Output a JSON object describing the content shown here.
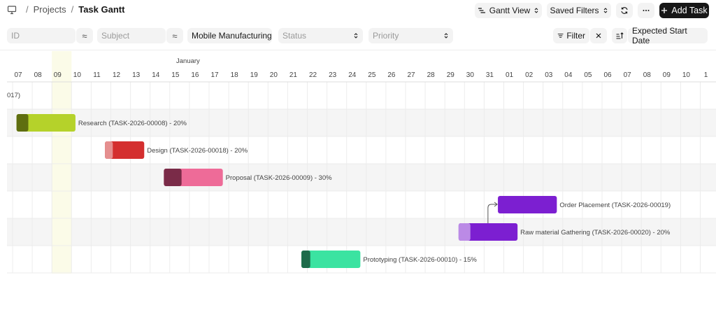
{
  "breadcrumb": {
    "projects": "Projects",
    "current": "Task Gantt"
  },
  "toolbar": {
    "view_label": "Gantt View",
    "saved_filters_label": "Saved Filters",
    "add_task_label": "Add Task"
  },
  "filters": {
    "id_placeholder": "ID",
    "subject_placeholder": "Subject",
    "project_value": "Mobile Manufacturing",
    "status_placeholder": "Status",
    "priority_placeholder": "Priority",
    "filter_label": "Filter",
    "sort_label": "Expected Start Date"
  },
  "gantt": {
    "month_label": "January",
    "days": [
      "07",
      "08",
      "09",
      "10",
      "11",
      "12",
      "13",
      "14",
      "15",
      "16",
      "17",
      "18",
      "19",
      "20",
      "21",
      "22",
      "23",
      "24",
      "25",
      "26",
      "27",
      "28",
      "29",
      "30",
      "31",
      "01",
      "02",
      "03",
      "04",
      "05",
      "06",
      "07",
      "08",
      "09",
      "10",
      "1"
    ],
    "highlight_day_index": 2,
    "group_label": "017)",
    "tasks": [
      {
        "row": 1,
        "label": "Research (TASK-2026-00008) - 20%",
        "start": -0.3,
        "span": 3,
        "progress": 20,
        "color": "#b5d22a",
        "dark": "#5f6e10"
      },
      {
        "row": 2,
        "label": "Design (TASK-2026-00018) - 20%",
        "start": 4.2,
        "span": 2,
        "progress": 20,
        "color": "#d42f2f",
        "dark": "#e58f8f"
      },
      {
        "row": 3,
        "label": "Proposal (TASK-2026-00009) - 30%",
        "start": 7.2,
        "span": 3,
        "progress": 30,
        "color": "#ee6b98",
        "dark": "#7a2b48"
      },
      {
        "row": 4,
        "label": "Order Placement (TASK-2026-00019)",
        "start": 24.2,
        "span": 3,
        "progress": 0,
        "color": "#7c1fd1",
        "dark": "#7c1fd1"
      },
      {
        "row": 5,
        "label": "Raw material Gathering (TASK-2026-00020) - 20%",
        "start": 22.2,
        "span": 3,
        "progress": 20,
        "color": "#7c1fd1",
        "dark": "#bb8ae6"
      },
      {
        "row": 6,
        "label": "Prototyping (TASK-2026-00010) - 15%",
        "start": 14.2,
        "span": 3,
        "progress": 15,
        "color": "#3be3a1",
        "dark": "#1d6b4a"
      }
    ]
  }
}
